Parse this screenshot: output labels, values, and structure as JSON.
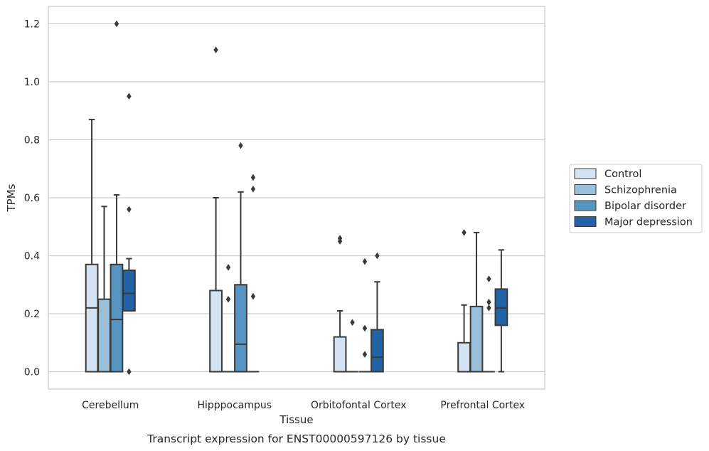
{
  "chart_data": {
    "type": "box",
    "title": "",
    "caption": "Transcript expression for ENST00000597126 by tissue",
    "xlabel": "Tissue",
    "ylabel": "TPMs",
    "ylim": [
      -0.06,
      1.26
    ],
    "yticks": [
      "0.0",
      "0.2",
      "0.4",
      "0.6",
      "0.8",
      "1.0",
      "1.2"
    ],
    "grid": "horizontal",
    "legend_position": "right",
    "categories": [
      "Cerebellum",
      "Hipppocampus",
      "Orbitofontal Cortex",
      "Prefrontal Cortex"
    ],
    "series": [
      {
        "name": "Control",
        "color": "#d3e3f2",
        "boxes": [
          {
            "whisker_low": 0.0,
            "q1": 0.0,
            "median": 0.22,
            "q3": 0.37,
            "whisker_high": 0.87,
            "outliers": []
          },
          {
            "whisker_low": 0.0,
            "q1": 0.0,
            "median": 0.0,
            "q3": 0.28,
            "whisker_high": 0.6,
            "outliers": [
              1.11
            ]
          },
          {
            "whisker_low": 0.0,
            "q1": 0.0,
            "median": 0.0,
            "q3": 0.12,
            "whisker_high": 0.21,
            "outliers": [
              0.45,
              0.46
            ]
          },
          {
            "whisker_low": 0.0,
            "q1": 0.0,
            "median": 0.0,
            "q3": 0.1,
            "whisker_high": 0.23,
            "outliers": [
              0.48
            ]
          }
        ]
      },
      {
        "name": "Schizophrenia",
        "color": "#9ac0d9",
        "boxes": [
          {
            "whisker_low": 0.0,
            "q1": 0.0,
            "median": 0.0,
            "q3": 0.25,
            "whisker_high": 0.57,
            "outliers": []
          },
          {
            "whisker_low": 0.0,
            "q1": 0.0,
            "median": 0.0,
            "q3": 0.0,
            "whisker_high": 0.0,
            "outliers": [
              0.25,
              0.36
            ]
          },
          {
            "whisker_low": 0.0,
            "q1": 0.0,
            "median": 0.0,
            "q3": 0.0,
            "whisker_high": 0.0,
            "outliers": [
              0.17
            ]
          },
          {
            "whisker_low": 0.0,
            "q1": 0.0,
            "median": 0.0,
            "q3": 0.225,
            "whisker_high": 0.48,
            "outliers": []
          }
        ]
      },
      {
        "name": "Bipolar disorder",
        "color": "#5695c2",
        "boxes": [
          {
            "whisker_low": 0.0,
            "q1": 0.0,
            "median": 0.18,
            "q3": 0.37,
            "whisker_high": 0.61,
            "outliers": [
              1.2
            ]
          },
          {
            "whisker_low": 0.0,
            "q1": 0.0,
            "median": 0.095,
            "q3": 0.3,
            "whisker_high": 0.62,
            "outliers": [
              0.78
            ]
          },
          {
            "whisker_low": 0.0,
            "q1": 0.0,
            "median": 0.0,
            "q3": 0.0,
            "whisker_high": 0.0,
            "outliers": [
              0.06,
              0.15,
              0.38
            ]
          },
          {
            "whisker_low": 0.0,
            "q1": 0.0,
            "median": 0.0,
            "q3": 0.0,
            "whisker_high": 0.0,
            "outliers": [
              0.22,
              0.24,
              0.32
            ]
          }
        ]
      },
      {
        "name": "Major depression",
        "color": "#2163a4",
        "boxes": [
          {
            "whisker_low": 0.21,
            "q1": 0.21,
            "median": 0.27,
            "q3": 0.35,
            "whisker_high": 0.39,
            "outliers": [
              0.0,
              0.56,
              0.95
            ]
          },
          {
            "whisker_low": 0.0,
            "q1": 0.0,
            "median": 0.0,
            "q3": 0.0,
            "whisker_high": 0.0,
            "outliers": [
              0.26,
              0.63,
              0.67
            ]
          },
          {
            "whisker_low": 0.0,
            "q1": 0.0,
            "median": 0.05,
            "q3": 0.145,
            "whisker_high": 0.31,
            "outliers": [
              0.4
            ]
          },
          {
            "whisker_low": 0.0,
            "q1": 0.16,
            "median": 0.22,
            "q3": 0.285,
            "whisker_high": 0.42,
            "outliers": []
          }
        ]
      }
    ]
  }
}
